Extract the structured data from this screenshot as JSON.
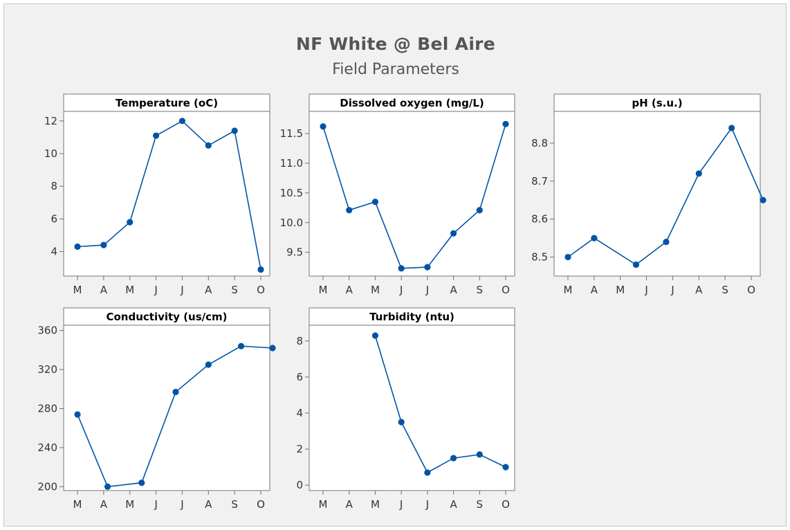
{
  "title": "NF White @ Bel Aire",
  "subtitle": "Field Parameters",
  "colors": {
    "series": "#0054a6",
    "panel_frame": "#8c8c8c",
    "plot_bg": "#ffffff",
    "figure_bg": "#f1f1f1"
  },
  "chart_data": [
    {
      "type": "line",
      "title": "Temperature (oC)",
      "categories": [
        "M",
        "A",
        "M",
        "J",
        "J",
        "A",
        "S",
        "O"
      ],
      "x": [
        0,
        1,
        2,
        3,
        4,
        5,
        6,
        7
      ],
      "values": [
        4.3,
        4.4,
        5.8,
        11.1,
        12.0,
        10.5,
        11.4,
        2.9
      ],
      "yticks": [
        4,
        6,
        8,
        10,
        12
      ],
      "ylim": [
        2.5,
        12.5
      ],
      "grid": false
    },
    {
      "type": "line",
      "title": "Dissolved oxygen (mg/L)",
      "categories": [
        "M",
        "A",
        "M",
        "J",
        "J",
        "A",
        "S",
        "O"
      ],
      "x": [
        0,
        1,
        2,
        3,
        4,
        5,
        6,
        7
      ],
      "values": [
        11.62,
        10.21,
        10.35,
        9.23,
        9.25,
        9.82,
        10.21,
        11.66
      ],
      "yticks": [
        9.5,
        10.0,
        10.5,
        11.0,
        11.5
      ],
      "ylim": [
        9.1,
        11.85
      ],
      "grid": false
    },
    {
      "type": "line",
      "title": "pH (s.u.)",
      "categories": [
        "M",
        "A",
        "M",
        "J",
        "J",
        "A",
        "S",
        "O"
      ],
      "x": [
        0,
        1,
        2.6,
        3.75,
        5,
        6.25,
        7.45
      ],
      "values": [
        8.5,
        8.55,
        8.48,
        8.54,
        8.72,
        8.84,
        8.65
      ],
      "yticks": [
        8.5,
        8.6,
        8.7,
        8.8
      ],
      "ylim": [
        8.45,
        8.88
      ],
      "grid": false
    },
    {
      "type": "line",
      "title": "Conductivity (us/cm)",
      "categories": [
        "M",
        "A",
        "M",
        "J",
        "J",
        "A",
        "S",
        "O"
      ],
      "x": [
        0,
        1.15,
        2.45,
        3.75,
        5,
        6.25,
        7.45
      ],
      "values": [
        274,
        200,
        204,
        297,
        325,
        344,
        342
      ],
      "yticks": [
        200,
        240,
        280,
        320,
        360
      ],
      "ylim": [
        196,
        364
      ],
      "grid": false
    },
    {
      "type": "line",
      "title": "Turbidity (ntu)",
      "categories": [
        "M",
        "A",
        "M",
        "J",
        "J",
        "A",
        "S",
        "O"
      ],
      "x": [
        2,
        3,
        4,
        5,
        6,
        7
      ],
      "values": [
        8.3,
        3.5,
        0.7,
        1.5,
        1.7,
        1.0
      ],
      "yticks": [
        0,
        2,
        4,
        6,
        8
      ],
      "ylim": [
        -0.3,
        8.8
      ],
      "grid": false
    }
  ]
}
